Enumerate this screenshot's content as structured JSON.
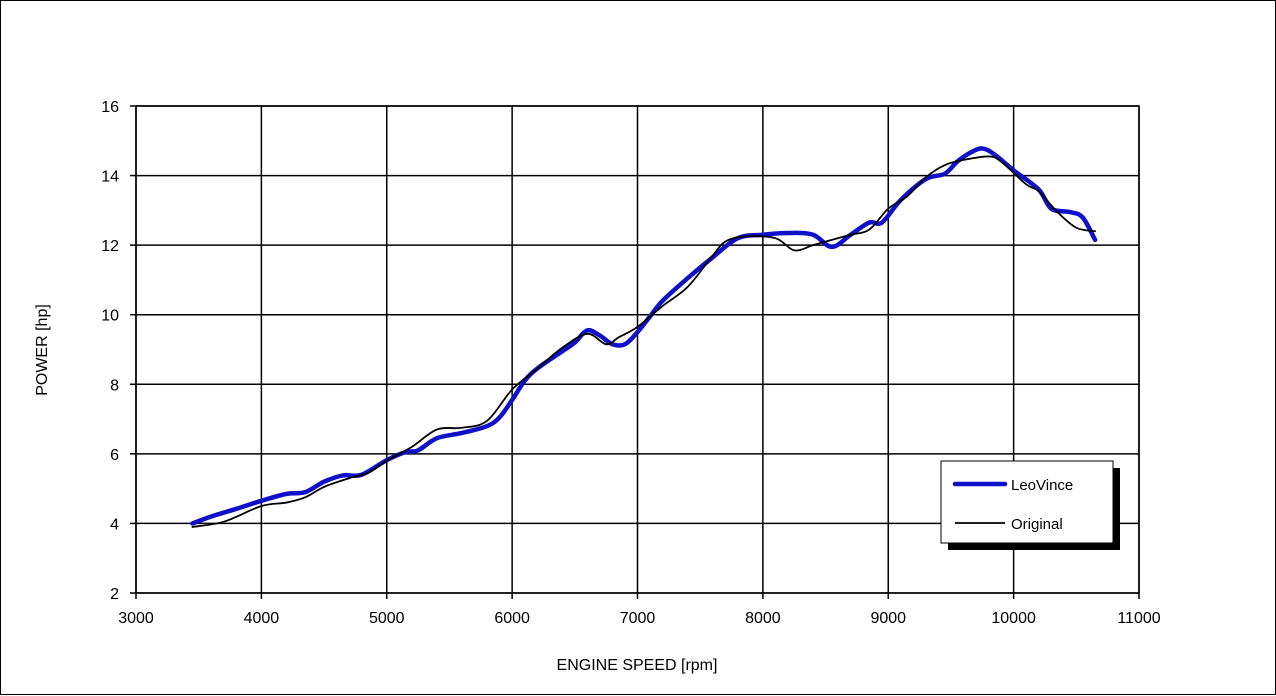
{
  "chart_data": {
    "type": "line",
    "title": "",
    "xlabel": "ENGINE SPEED [rpm]",
    "ylabel": "POWER [hp]",
    "xlim": [
      3000,
      11000
    ],
    "ylim": [
      2,
      16
    ],
    "xticks": [
      3000,
      4000,
      5000,
      6000,
      7000,
      8000,
      9000,
      10000,
      11000
    ],
    "yticks": [
      2,
      4,
      6,
      8,
      10,
      12,
      14,
      16
    ],
    "grid": true,
    "legend_position": "bottom-right",
    "series": [
      {
        "name": "LeoVince",
        "color": "#1010C8",
        "line_style": "thick",
        "points": [
          [
            3450,
            4.0
          ],
          [
            3600,
            4.2
          ],
          [
            3800,
            4.42
          ],
          [
            4000,
            4.65
          ],
          [
            4200,
            4.85
          ],
          [
            4350,
            4.9
          ],
          [
            4500,
            5.2
          ],
          [
            4650,
            5.38
          ],
          [
            4800,
            5.4
          ],
          [
            5000,
            5.82
          ],
          [
            5150,
            6.05
          ],
          [
            5250,
            6.1
          ],
          [
            5400,
            6.45
          ],
          [
            5600,
            6.6
          ],
          [
            5800,
            6.8
          ],
          [
            5900,
            7.05
          ],
          [
            6000,
            7.55
          ],
          [
            6100,
            8.1
          ],
          [
            6200,
            8.45
          ],
          [
            6400,
            8.95
          ],
          [
            6500,
            9.2
          ],
          [
            6600,
            9.55
          ],
          [
            6700,
            9.4
          ],
          [
            6800,
            9.15
          ],
          [
            6900,
            9.15
          ],
          [
            7000,
            9.5
          ],
          [
            7100,
            9.95
          ],
          [
            7200,
            10.4
          ],
          [
            7400,
            11.05
          ],
          [
            7600,
            11.65
          ],
          [
            7800,
            12.2
          ],
          [
            8000,
            12.3
          ],
          [
            8200,
            12.35
          ],
          [
            8400,
            12.3
          ],
          [
            8550,
            11.95
          ],
          [
            8700,
            12.3
          ],
          [
            8850,
            12.65
          ],
          [
            8950,
            12.65
          ],
          [
            9100,
            13.3
          ],
          [
            9300,
            13.9
          ],
          [
            9450,
            14.05
          ],
          [
            9550,
            14.4
          ],
          [
            9650,
            14.65
          ],
          [
            9750,
            14.78
          ],
          [
            9850,
            14.6
          ],
          [
            10000,
            14.15
          ],
          [
            10200,
            13.6
          ],
          [
            10300,
            13.05
          ],
          [
            10450,
            12.95
          ],
          [
            10550,
            12.8
          ],
          [
            10650,
            12.15
          ]
        ]
      },
      {
        "name": "Original",
        "color": "#000000",
        "line_style": "thin",
        "points": [
          [
            3450,
            3.9
          ],
          [
            3700,
            4.05
          ],
          [
            4000,
            4.5
          ],
          [
            4200,
            4.6
          ],
          [
            4350,
            4.75
          ],
          [
            4500,
            5.05
          ],
          [
            4700,
            5.3
          ],
          [
            4850,
            5.45
          ],
          [
            5000,
            5.8
          ],
          [
            5200,
            6.2
          ],
          [
            5400,
            6.7
          ],
          [
            5600,
            6.75
          ],
          [
            5800,
            6.95
          ],
          [
            6000,
            7.85
          ],
          [
            6200,
            8.45
          ],
          [
            6400,
            9.05
          ],
          [
            6600,
            9.45
          ],
          [
            6750,
            9.15
          ],
          [
            6850,
            9.35
          ],
          [
            7000,
            9.65
          ],
          [
            7200,
            10.25
          ],
          [
            7400,
            10.8
          ],
          [
            7600,
            11.7
          ],
          [
            7700,
            12.1
          ],
          [
            7850,
            12.25
          ],
          [
            8100,
            12.2
          ],
          [
            8250,
            11.85
          ],
          [
            8400,
            12.0
          ],
          [
            8550,
            12.15
          ],
          [
            8700,
            12.3
          ],
          [
            8850,
            12.45
          ],
          [
            9000,
            13.05
          ],
          [
            9150,
            13.4
          ],
          [
            9300,
            13.95
          ],
          [
            9450,
            14.3
          ],
          [
            9600,
            14.45
          ],
          [
            9800,
            14.55
          ],
          [
            9900,
            14.4
          ],
          [
            10100,
            13.75
          ],
          [
            10200,
            13.55
          ],
          [
            10350,
            12.95
          ],
          [
            10500,
            12.5
          ],
          [
            10650,
            12.4
          ]
        ]
      }
    ]
  }
}
